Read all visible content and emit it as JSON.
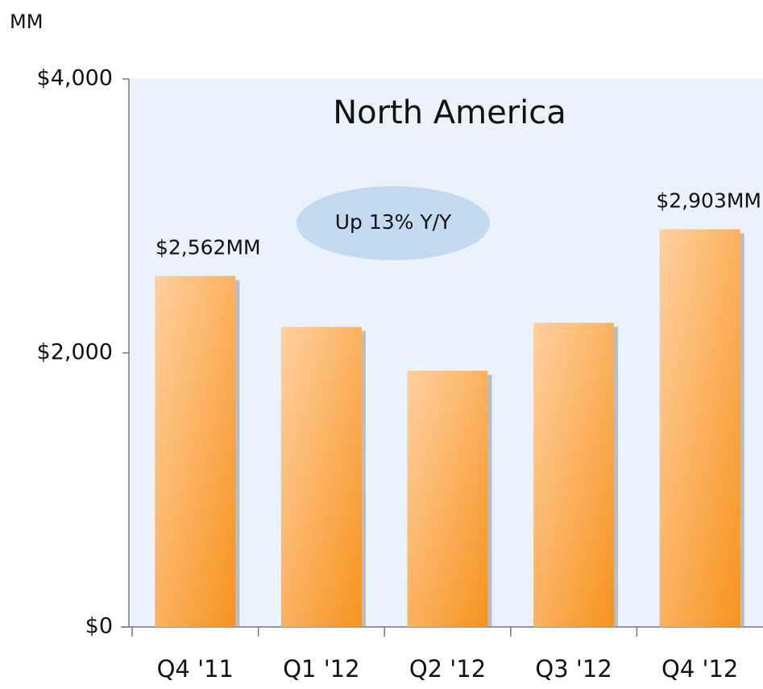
{
  "chart_data": {
    "type": "bar",
    "title": "North America",
    "y_label": "MM",
    "annotation": "Up 13% Y/Y",
    "categories": [
      "Q4 '11",
      "Q1 '12",
      "Q2 '12",
      "Q3 '12",
      "Q4 '12"
    ],
    "values": [
      2562,
      2190,
      1870,
      2220,
      2903
    ],
    "value_labels": [
      "$2,562MM",
      null,
      null,
      null,
      "$2,903MM"
    ],
    "color": "#f7931e",
    "ylim": [
      0,
      4000
    ],
    "yticks": [
      {
        "value": 0,
        "label": "$0"
      },
      {
        "value": 2000,
        "label": "$2,000"
      },
      {
        "value": 4000,
        "label": "$4,000"
      }
    ],
    "grid": false
  }
}
